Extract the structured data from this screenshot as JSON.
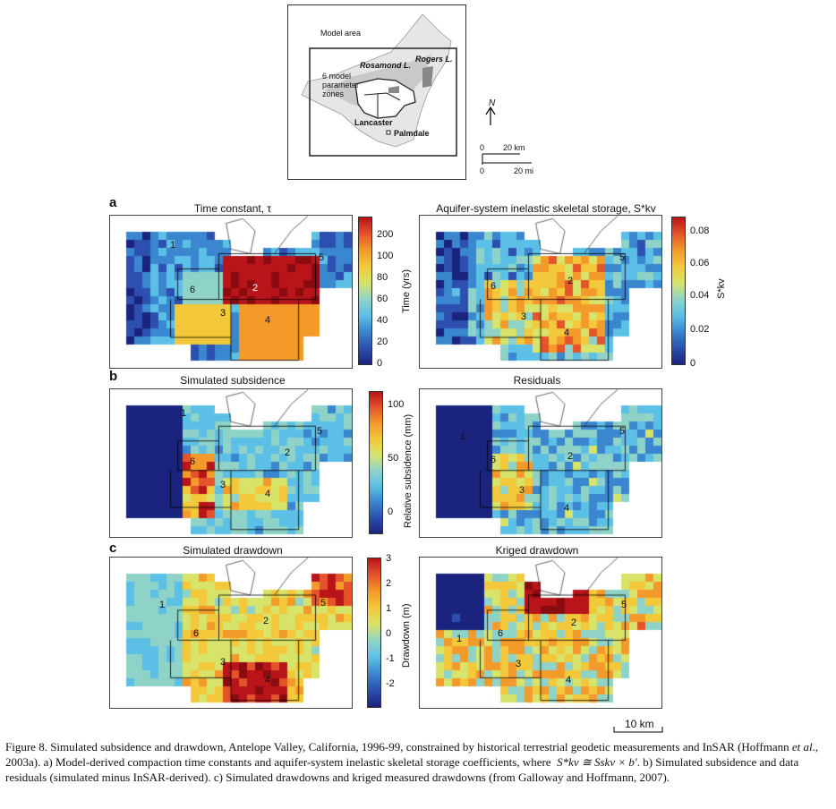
{
  "inset": {
    "model_area": "Model area",
    "rosamond": "Rosamond L.",
    "rogers": "Rogers L.",
    "zones_label": "6 model parameter zones",
    "lancaster": "Lancaster",
    "palmdale": "Palmdale",
    "north": "N",
    "scale_km_0": "0",
    "scale_km": "20 km",
    "scale_mi_0": "0",
    "scale_mi": "20 mi"
  },
  "rows": {
    "a": "a",
    "b": "b",
    "c": "c"
  },
  "panels": {
    "a_left_title": "Time constant, τ",
    "a_right_title": "Aquifer-system inelastic skeletal storage, S*kv",
    "b_left_title": "Simulated subsidence",
    "b_right_title": "Residuals",
    "c_left_title": "Simulated drawdown",
    "c_right_title": "Kriged drawdown"
  },
  "colorbars": {
    "time": {
      "label": "Time (yrs)",
      "ticks": [
        "200",
        "100",
        "80",
        "60",
        "40",
        "20",
        "0"
      ]
    },
    "storage": {
      "label": "S*kv",
      "ticks": [
        "0.08",
        "0.06",
        "0.04",
        "0.02",
        "0"
      ]
    },
    "subsidence": {
      "label": "Relative subsidence (mm)",
      "ticks": [
        "100",
        "50",
        "0"
      ]
    },
    "drawdown": {
      "label": "Drawdown (m)",
      "ticks": [
        "3",
        "2",
        "1",
        "0",
        "-1",
        "-2"
      ]
    }
  },
  "zones": [
    "1",
    "2",
    "3",
    "4",
    "5",
    "6"
  ],
  "scalebar": "10 km",
  "caption": {
    "part1": "Figure 8. Simulated subsidence and drawdown, Antelope Valley, California, 1996-99, constrained by historical terrestrial geodetic measurements and InSAR (Hoffmann ",
    "etal": "et al",
    "part2": "., 2003a). a) Model-derived compaction time constants and aquifer-system inelastic skeletal storage coefficients, where",
    "formula": "S*kv ≅ Sskv × b′",
    "part3": ". b) Simulated subsidence and data residuals (simulated minus InSAR-derived). c) Simulated drawdowns and kriged measured drawdowns (from Galloway and Hoffmann, 2007)."
  },
  "colors": {
    "jet": [
      "#1a237e",
      "#2c4fb0",
      "#3a86cf",
      "#5cc0e6",
      "#8fd3c8",
      "#d8e36a",
      "#f3c83a",
      "#f39a2a",
      "#e5532a",
      "#b8141a",
      "#8a0b10"
    ]
  }
}
